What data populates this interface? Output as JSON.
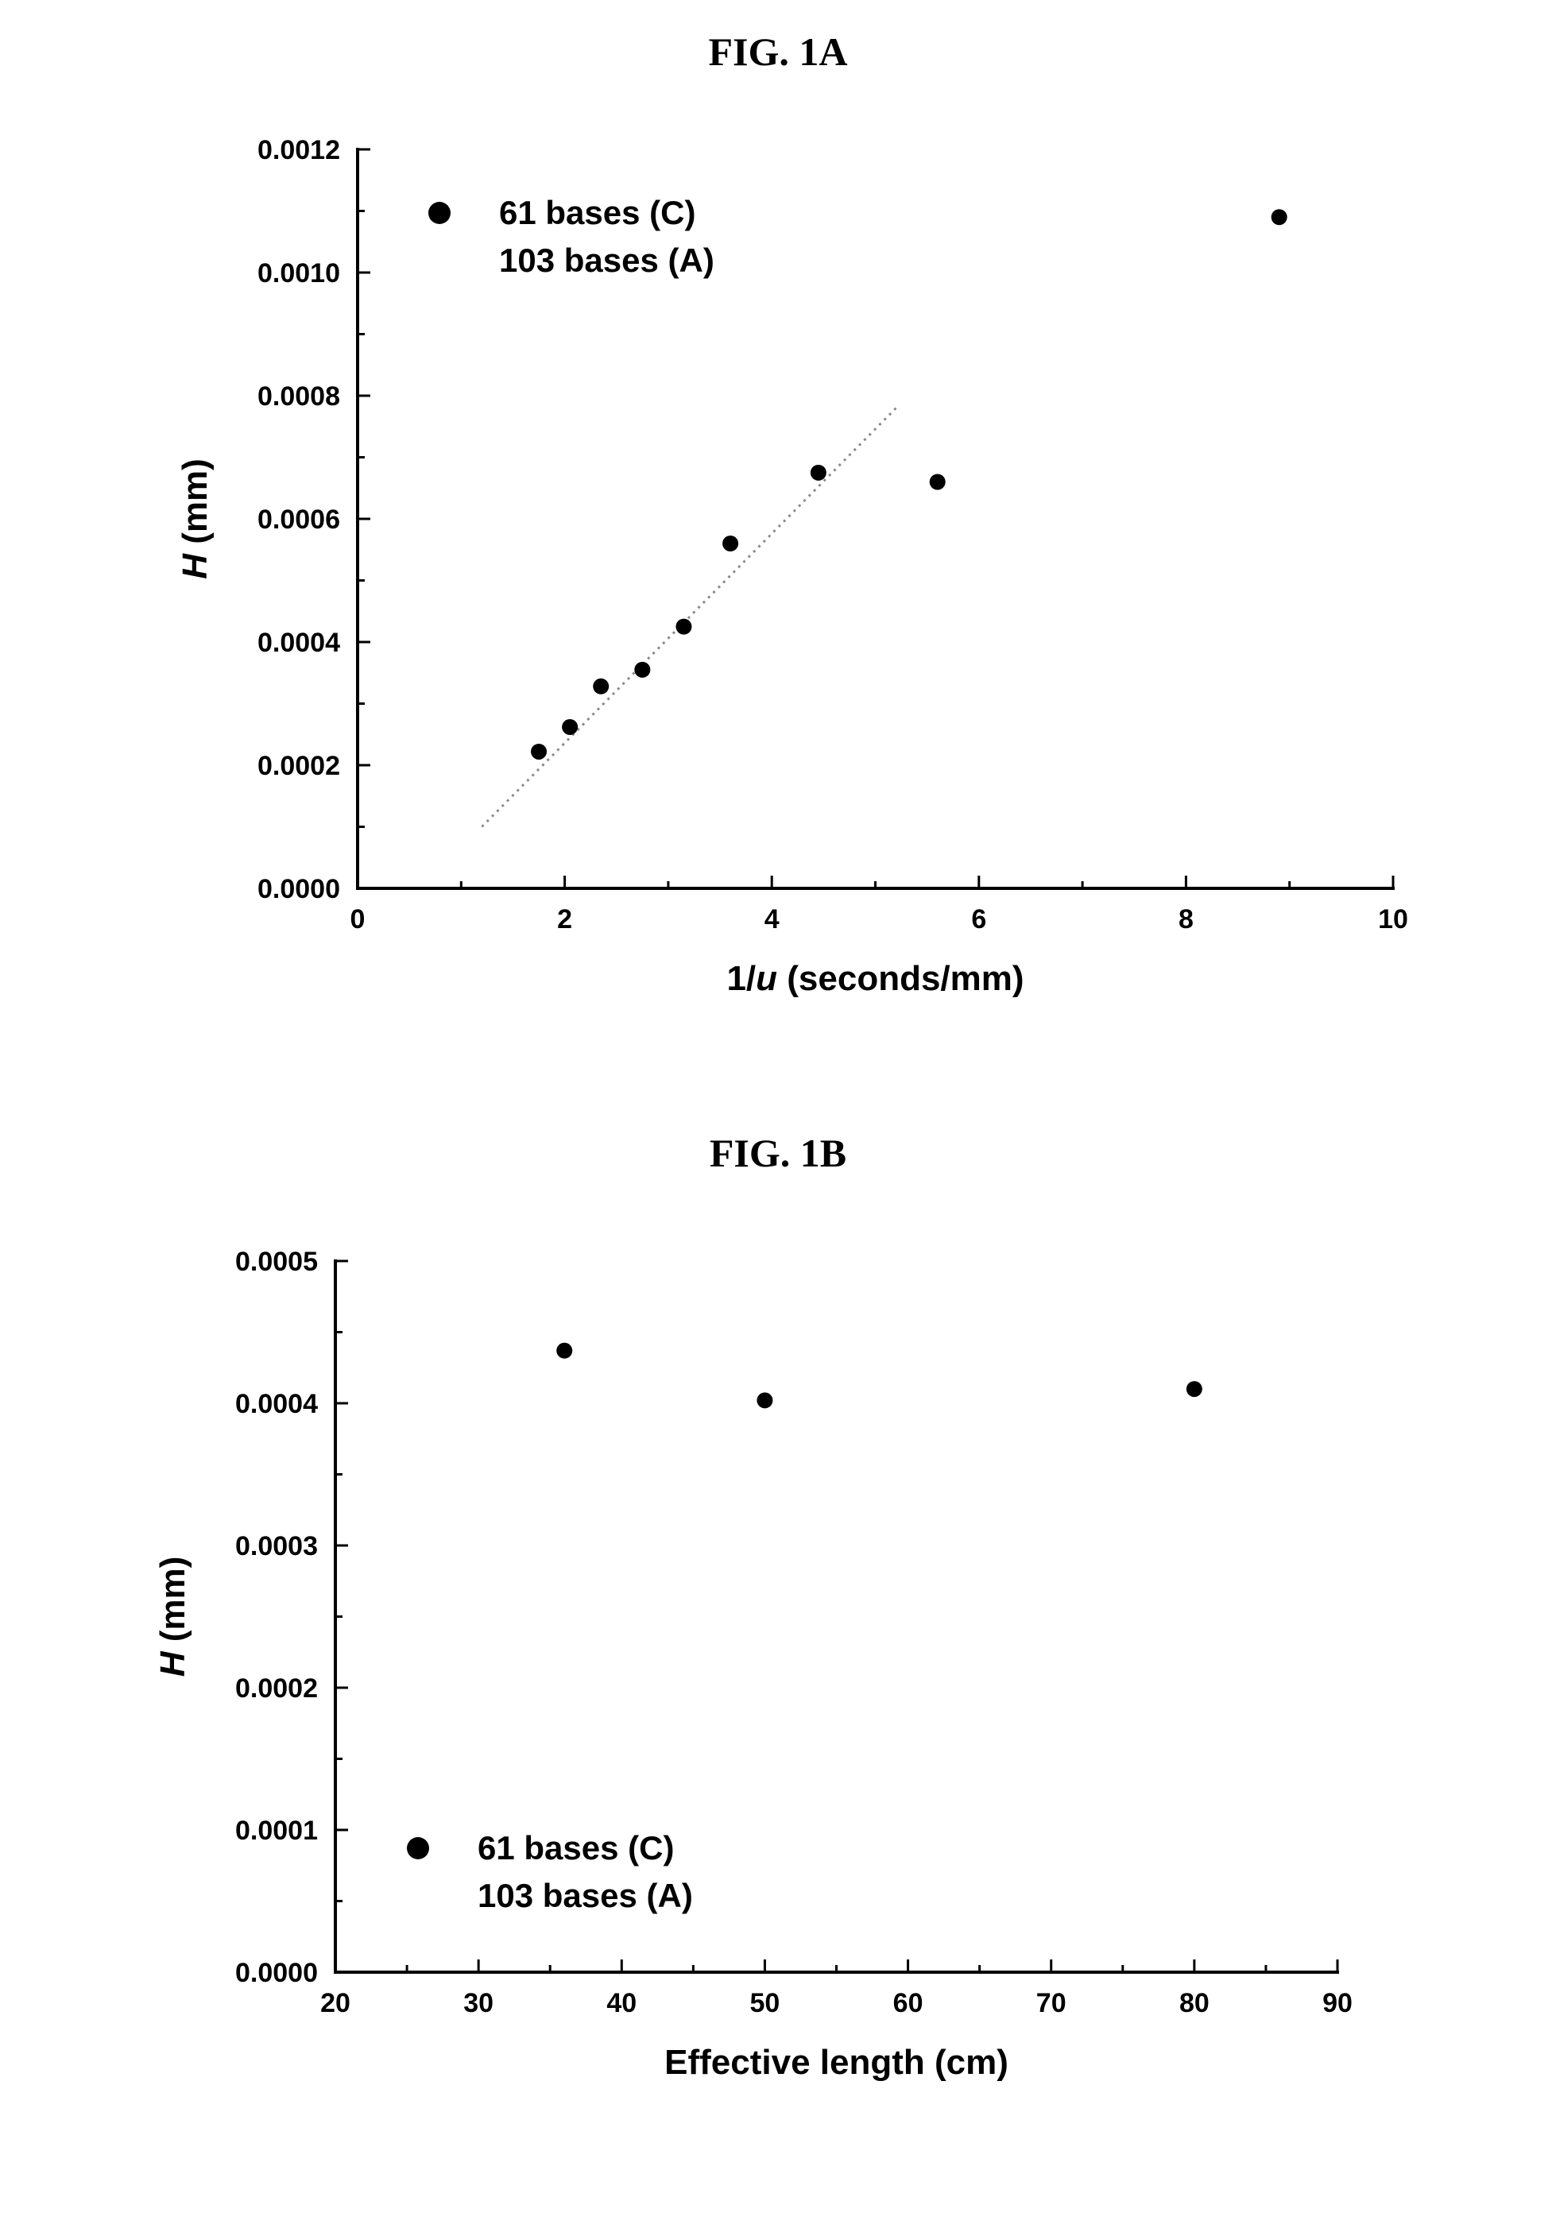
{
  "figures": [
    {
      "title": "FIG. 1A"
    },
    {
      "title": "FIG. 1B"
    }
  ],
  "chart_data": [
    {
      "type": "scatter",
      "title": "FIG. 1A",
      "xlabel_prefix": "1/",
      "xlabel_italic": "u",
      "xlabel_suffix": " (seconds/mm)",
      "ylabel_italic": "H",
      "ylabel_suffix": " (mm)",
      "xlim": [
        0,
        10
      ],
      "ylim": [
        0,
        0.0012
      ],
      "xticks": [
        "0",
        "2",
        "4",
        "6",
        "8",
        "10"
      ],
      "yticks": [
        "0.0000",
        "0.0002",
        "0.0004",
        "0.0006",
        "0.0008",
        "0.0010",
        "0.0012"
      ],
      "legend": [
        "61 bases (C)",
        "103 bases (A)"
      ],
      "legend_position": "top-left",
      "series": [
        {
          "name": "61 bases (C)",
          "x": [
            1.75,
            2.05,
            2.35,
            2.75,
            3.15,
            3.6,
            4.45,
            5.6,
            8.9
          ],
          "y": [
            0.000222,
            0.000262,
            0.000328,
            0.000355,
            0.000425,
            0.00056,
            0.000675,
            0.00066,
            0.00109
          ]
        }
      ],
      "fit_line": {
        "x": [
          1.2,
          5.2
        ],
        "y": [
          0.0001,
          0.00078
        ]
      },
      "grid": false
    },
    {
      "type": "scatter",
      "title": "FIG. 1B",
      "xlabel": "Effective length (cm)",
      "ylabel_italic": "H",
      "ylabel_suffix": " (mm)",
      "xlim": [
        20,
        90
      ],
      "ylim": [
        0,
        0.0005
      ],
      "xticks": [
        "20",
        "30",
        "40",
        "50",
        "60",
        "70",
        "80",
        "90"
      ],
      "yticks": [
        "0.0000",
        "0.0001",
        "0.0002",
        "0.0003",
        "0.0004",
        "0.0005"
      ],
      "legend": [
        "61 bases (C)",
        "103 bases (A)"
      ],
      "legend_position": "bottom-left",
      "series": [
        {
          "name": "61 bases (C)",
          "x": [
            36,
            50,
            80
          ],
          "y": [
            0.000437,
            0.000402,
            0.00041
          ]
        }
      ],
      "grid": false
    }
  ]
}
